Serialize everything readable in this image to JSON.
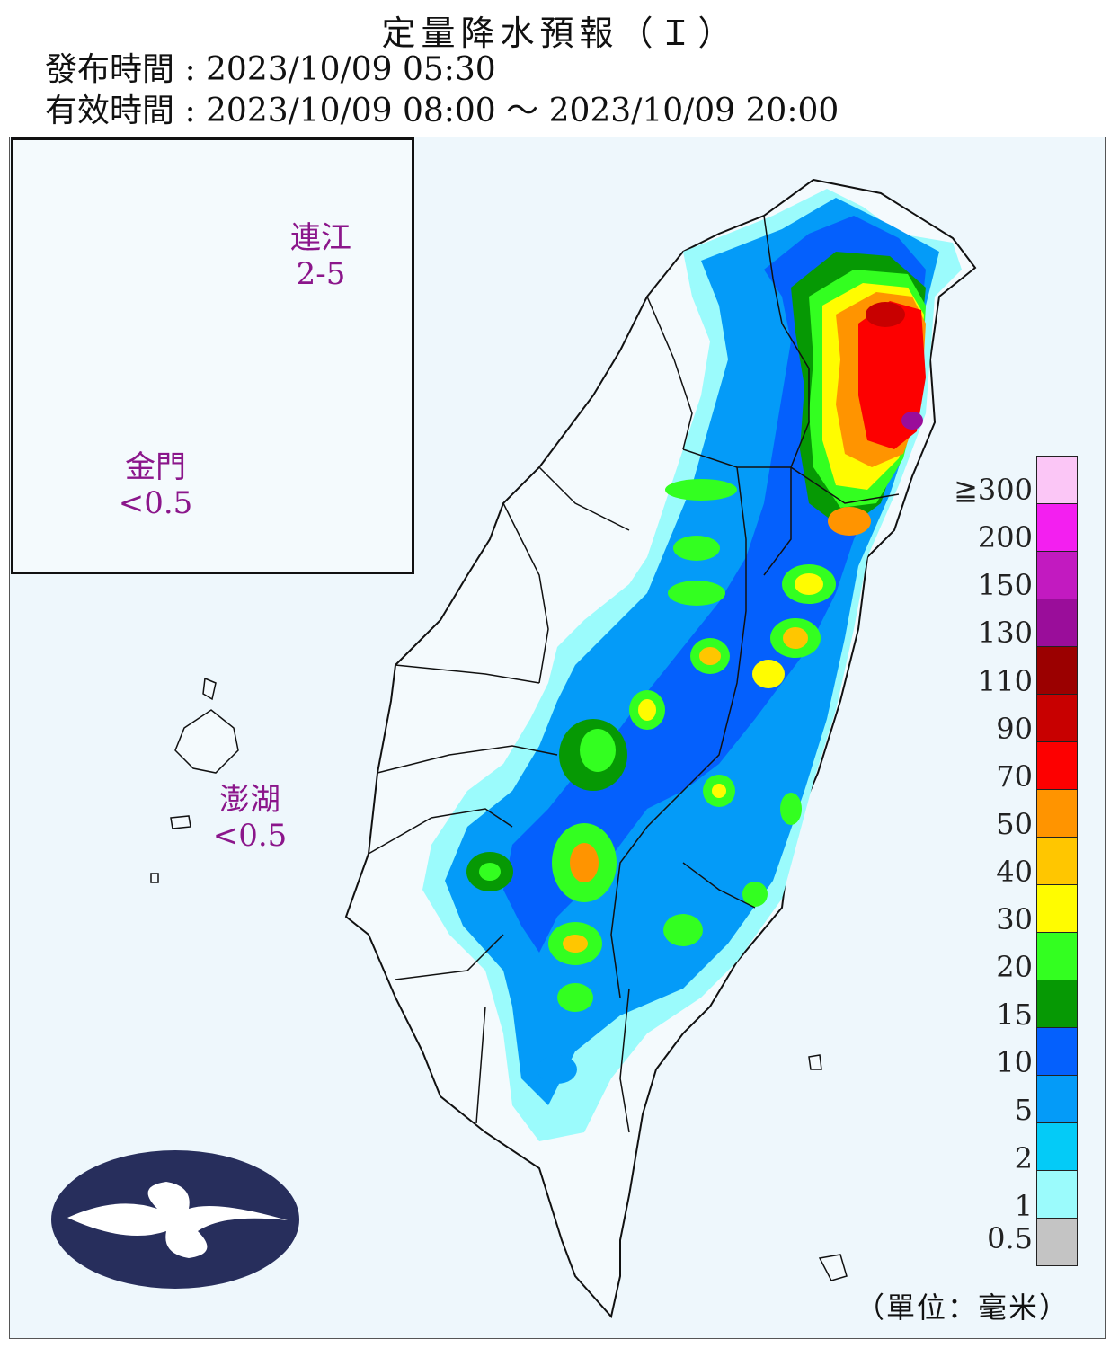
{
  "header": {
    "title": "定量降水預報（Ｉ）",
    "issue_time": "發布時間 : 2023/10/09 05:30",
    "valid_time": "有效時間 : 2023/10/09 08:00 ～ 2023/10/09 20:00"
  },
  "regions": [
    {
      "name": "連江",
      "value": "2-5"
    },
    {
      "name": "金門",
      "value": "<0.5"
    },
    {
      "name": "澎湖",
      "value": "<0.5"
    }
  ],
  "legend": {
    "levels": [
      "≧300",
      "200",
      "150",
      "130",
      "110",
      "90",
      "70",
      "50",
      "40",
      "30",
      "20",
      "15",
      "10",
      "5",
      "2",
      "1",
      "0.5"
    ],
    "colors": [
      "#fbc6f6",
      "#f31ff0",
      "#c21ac0",
      "#9a0d9a",
      "#9b0000",
      "#c80000",
      "#fd0000",
      "#ff9400",
      "#ffc600",
      "#fffc00",
      "#33ff20",
      "#069904",
      "#0460fd",
      "#049bf8",
      "#04cbf7",
      "#9bfbfc",
      "#c4c4c4"
    ],
    "unit": "（單位：毫米）"
  },
  "logo_icon": "cwa-cloud-logo-icon"
}
